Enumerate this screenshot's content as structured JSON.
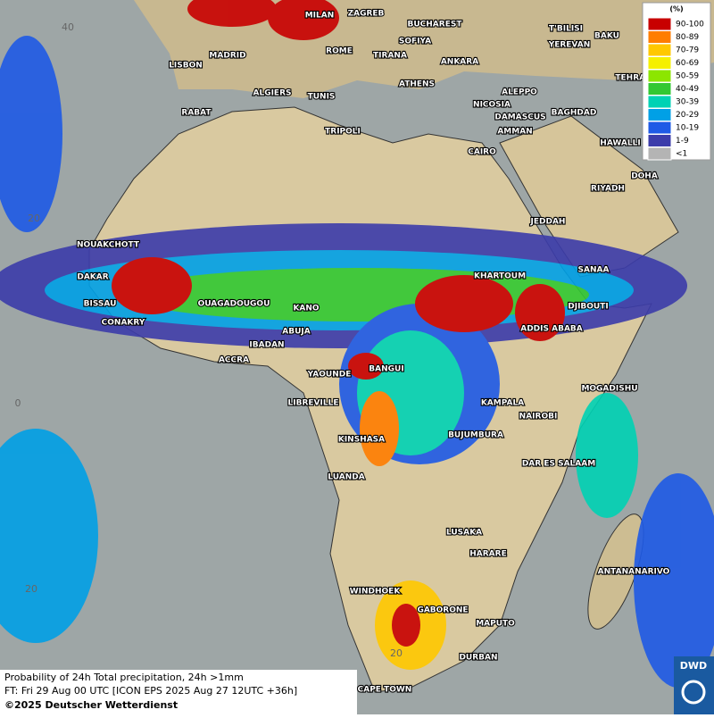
{
  "cities": [
    "MILAN",
    "ZAGREB",
    "BUCHAREST",
    "T'BILISI",
    "BAKU",
    "YEREVAN",
    "SOFIYA",
    "MADRID",
    "ROME",
    "TIRANA",
    "ANKARA",
    "LISBON",
    "TEHRAN",
    "ATHENS",
    "ALGIERS",
    "TUNIS",
    "ALEPPO",
    "RABAT",
    "NICOSIA",
    "BAGHDAD",
    "DAMASCUS",
    "TRIPOLI",
    "AMMAN",
    "HAWALLI",
    "CAIRO",
    "DOHA",
    "RIYADH",
    "JEDDAH",
    "NOUAKCHOTT",
    "KHARTOUM",
    "DAKAR",
    "SANAA",
    "BISSAU",
    "DJIBOUTI",
    "OUAGADOUGOU",
    "KANO",
    "CONAKRY",
    "ABUJA",
    "ADDIS ABABA",
    "IBADAN",
    "ACCRA",
    "BANGUI",
    "YAOUNDE",
    "MOGADISHU",
    "LIBREVILLE",
    "KAMPALA",
    "NAIROBI",
    "BUJUMBURA",
    "KINSHASA",
    "DAR ES SALAAM",
    "LUANDA",
    "LUSAKA",
    "HARARE",
    "ANTANANARIVO",
    "WINDHOEK",
    "GABORONE",
    "MAPUTO",
    "DURBAN",
    "CAPE TOWN"
  ],
  "grid_labels": [
    "40",
    "20",
    "0",
    "20",
    "20"
  ],
  "legend": {
    "title": "(%)",
    "items": [
      {
        "label": "90-100",
        "color": "#c80000"
      },
      {
        "label": "80-89",
        "color": "#ff7d00"
      },
      {
        "label": "70-79",
        "color": "#ffc800"
      },
      {
        "label": "60-69",
        "color": "#f5f000"
      },
      {
        "label": "50-59",
        "color": "#8ce600"
      },
      {
        "label": "40-49",
        "color": "#32c832"
      },
      {
        "label": "30-39",
        "color": "#00d2b4"
      },
      {
        "label": "20-29",
        "color": "#00a0e6"
      },
      {
        "label": "10-19",
        "color": "#1e5ae6"
      },
      {
        "label": "1-9",
        "color": "#3c3caa"
      },
      {
        "label": "<1",
        "color": "#b4b4b4"
      }
    ]
  },
  "footer": {
    "line1": "Probability of 24h Total precipitation, 24h >1mm",
    "line2": "FT: Fri 29 Aug 00 UTC [ICON EPS 2025 Aug 27 12UTC +36h]",
    "line3": "©2025 Deutscher Wetterdienst"
  },
  "logo": "DWD"
}
